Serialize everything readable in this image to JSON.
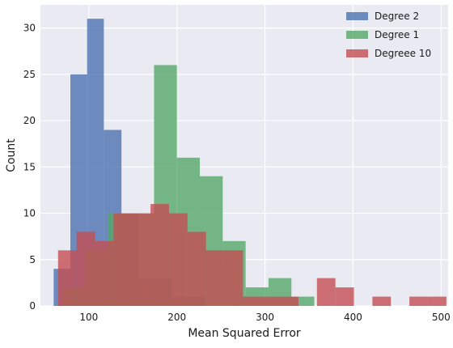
{
  "chart_data": {
    "type": "bar",
    "subtype": "histogram",
    "xlabel": "Mean Squared Error",
    "ylabel": "Count",
    "xlim": [
      45,
      508
    ],
    "ylim": [
      0,
      32.5
    ],
    "x_ticks": [
      100,
      200,
      300,
      400,
      500
    ],
    "y_ticks": [
      0,
      5,
      10,
      15,
      20,
      25,
      30
    ],
    "grid": true,
    "legend_position": "top-right",
    "series": [
      {
        "name": "Degree 2",
        "color": "#4c72b0",
        "bins": [
          {
            "x0": 60,
            "x1": 79,
            "count": 4
          },
          {
            "x0": 79,
            "x1": 98,
            "count": 25
          },
          {
            "x0": 98,
            "x1": 117,
            "count": 31
          },
          {
            "x0": 117,
            "x1": 137,
            "count": 19
          },
          {
            "x0": 137,
            "x1": 156,
            "count": 10
          },
          {
            "x0": 156,
            "x1": 175,
            "count": 3
          },
          {
            "x0": 175,
            "x1": 194,
            "count": 3
          },
          {
            "x0": 194,
            "x1": 213,
            "count": 1
          },
          {
            "x0": 213,
            "x1": 233,
            "count": 1
          }
        ]
      },
      {
        "name": "Degree 1",
        "color": "#55a868",
        "bins": [
          {
            "x0": 70,
            "x1": 96,
            "count": 2
          },
          {
            "x0": 96,
            "x1": 122,
            "count": 6
          },
          {
            "x0": 122,
            "x1": 148,
            "count": 10
          },
          {
            "x0": 148,
            "x1": 174,
            "count": 10
          },
          {
            "x0": 174,
            "x1": 200,
            "count": 26
          },
          {
            "x0": 200,
            "x1": 226,
            "count": 16
          },
          {
            "x0": 226,
            "x1": 252,
            "count": 14
          },
          {
            "x0": 252,
            "x1": 278,
            "count": 7
          },
          {
            "x0": 278,
            "x1": 304,
            "count": 2
          },
          {
            "x0": 304,
            "x1": 330,
            "count": 3
          },
          {
            "x0": 330,
            "x1": 356,
            "count": 1
          }
        ]
      },
      {
        "name": "Degreee 10",
        "color": "#c44e52",
        "bins": [
          {
            "x0": 65,
            "x1": 86,
            "count": 6
          },
          {
            "x0": 86,
            "x1": 107,
            "count": 8
          },
          {
            "x0": 107,
            "x1": 128,
            "count": 7
          },
          {
            "x0": 128,
            "x1": 149,
            "count": 10
          },
          {
            "x0": 149,
            "x1": 170,
            "count": 10
          },
          {
            "x0": 170,
            "x1": 191,
            "count": 11
          },
          {
            "x0": 191,
            "x1": 212,
            "count": 10
          },
          {
            "x0": 212,
            "x1": 233,
            "count": 8
          },
          {
            "x0": 233,
            "x1": 254,
            "count": 6
          },
          {
            "x0": 254,
            "x1": 275,
            "count": 6
          },
          {
            "x0": 275,
            "x1": 296,
            "count": 1
          },
          {
            "x0": 296,
            "x1": 317,
            "count": 1
          },
          {
            "x0": 317,
            "x1": 338,
            "count": 1
          },
          {
            "x0": 338,
            "x1": 359,
            "count": 0
          },
          {
            "x0": 359,
            "x1": 380,
            "count": 3
          },
          {
            "x0": 380,
            "x1": 401,
            "count": 2
          },
          {
            "x0": 401,
            "x1": 422,
            "count": 0
          },
          {
            "x0": 422,
            "x1": 443,
            "count": 1
          },
          {
            "x0": 443,
            "x1": 464,
            "count": 0
          },
          {
            "x0": 464,
            "x1": 485,
            "count": 1
          },
          {
            "x0": 485,
            "x1": 506,
            "count": 1
          }
        ]
      }
    ]
  },
  "style": {
    "plot_background": "#eaeaf2",
    "grid_color": "#ffffff",
    "bar_opacity": 0.8
  }
}
